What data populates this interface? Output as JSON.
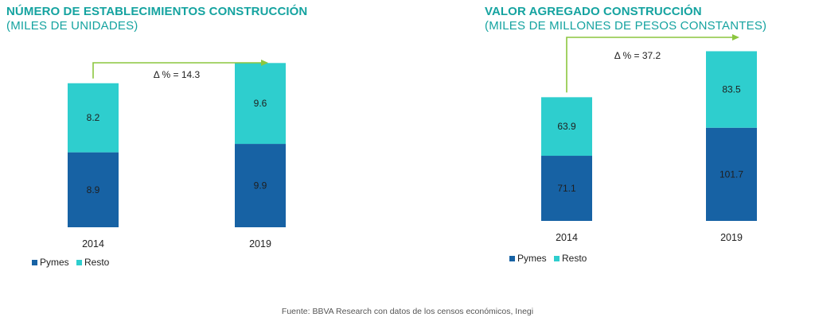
{
  "source": "Fuente: BBVA Research con datos de los censos económicos, Inegi",
  "colors": {
    "pymes": "#1762a4",
    "resto": "#2ecece",
    "arrow": "#8cc63f",
    "title": "#15a3a0"
  },
  "chart_data": [
    {
      "type": "bar",
      "stacked": true,
      "title": "NÚMERO DE ESTABLECIMIENTOS CONSTRUCCIÓN",
      "subtitle": "(MILES DE UNIDADES)",
      "categories": [
        "2014",
        "2019"
      ],
      "series": [
        {
          "name": "Pymes",
          "values": [
            8.9,
            9.9
          ]
        },
        {
          "name": "Resto",
          "values": [
            8.2,
            9.6
          ]
        }
      ],
      "data_labels": {
        "Pymes": [
          "8.9",
          "9.9"
        ],
        "Resto": [
          "8.2",
          "9.6"
        ]
      },
      "annotation": "Δ % = 14.3",
      "legend": [
        "Pymes",
        "Resto"
      ],
      "legend_position": "bottom-left",
      "grid": false
    },
    {
      "type": "bar",
      "stacked": true,
      "title": "VALOR AGREGADO CONSTRUCCIÓN",
      "subtitle": "(MILES DE MILLONES DE PESOS CONSTANTES)",
      "categories": [
        "2014",
        "2019"
      ],
      "series": [
        {
          "name": "Pymes",
          "values": [
            71.1,
            101.7
          ]
        },
        {
          "name": "Resto",
          "values": [
            63.9,
            83.5
          ]
        }
      ],
      "data_labels": {
        "Pymes": [
          "71.1",
          "101.7"
        ],
        "Resto": [
          "63.9",
          "83.5"
        ]
      },
      "annotation": "Δ % = 37.2",
      "legend": [
        "Pymes",
        "Resto"
      ],
      "legend_position": "bottom-left",
      "grid": false
    }
  ]
}
